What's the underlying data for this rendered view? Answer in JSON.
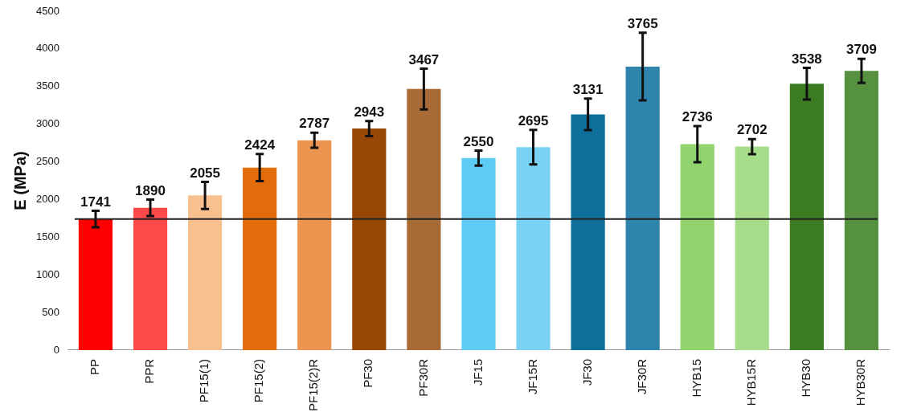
{
  "chart_data": {
    "type": "bar",
    "ylabel": "E (MPa)",
    "categories": [
      "PP",
      "PPR",
      "PF15(1)",
      "PF15(2)",
      "PF15(2)R",
      "PF30",
      "PF30R",
      "JF15",
      "JF15R",
      "JF30",
      "JF30R",
      "HYB15",
      "HYB15R",
      "HYB30",
      "HYB30R"
    ],
    "values": [
      1741,
      1890,
      2055,
      2424,
      2787,
      2943,
      3467,
      2550,
      2695,
      3131,
      3765,
      2736,
      2702,
      3538,
      3709
    ],
    "errors": [
      110,
      110,
      180,
      180,
      100,
      100,
      270,
      100,
      230,
      210,
      450,
      240,
      100,
      210,
      160
    ],
    "colors": [
      "#ff0000",
      "#ff4a4a",
      "#f8bf8f",
      "#e36c0a",
      "#ec9450",
      "#974706",
      "#a86a36",
      "#5ecbf5",
      "#7ad3f5",
      "#0e6f9a",
      "#2f84ad",
      "#92d36e",
      "#a6dc8a",
      "#3b7b22",
      "#55913e"
    ],
    "ylim": [
      0,
      4500
    ],
    "yticks": [
      0,
      500,
      1000,
      1500,
      2000,
      2500,
      3000,
      3500,
      4000,
      4500
    ],
    "ref_lines": [
      {
        "axis": "y",
        "value": 1741,
        "color": "#222222"
      }
    ],
    "data_labels": true,
    "grid": false,
    "legend": false
  }
}
